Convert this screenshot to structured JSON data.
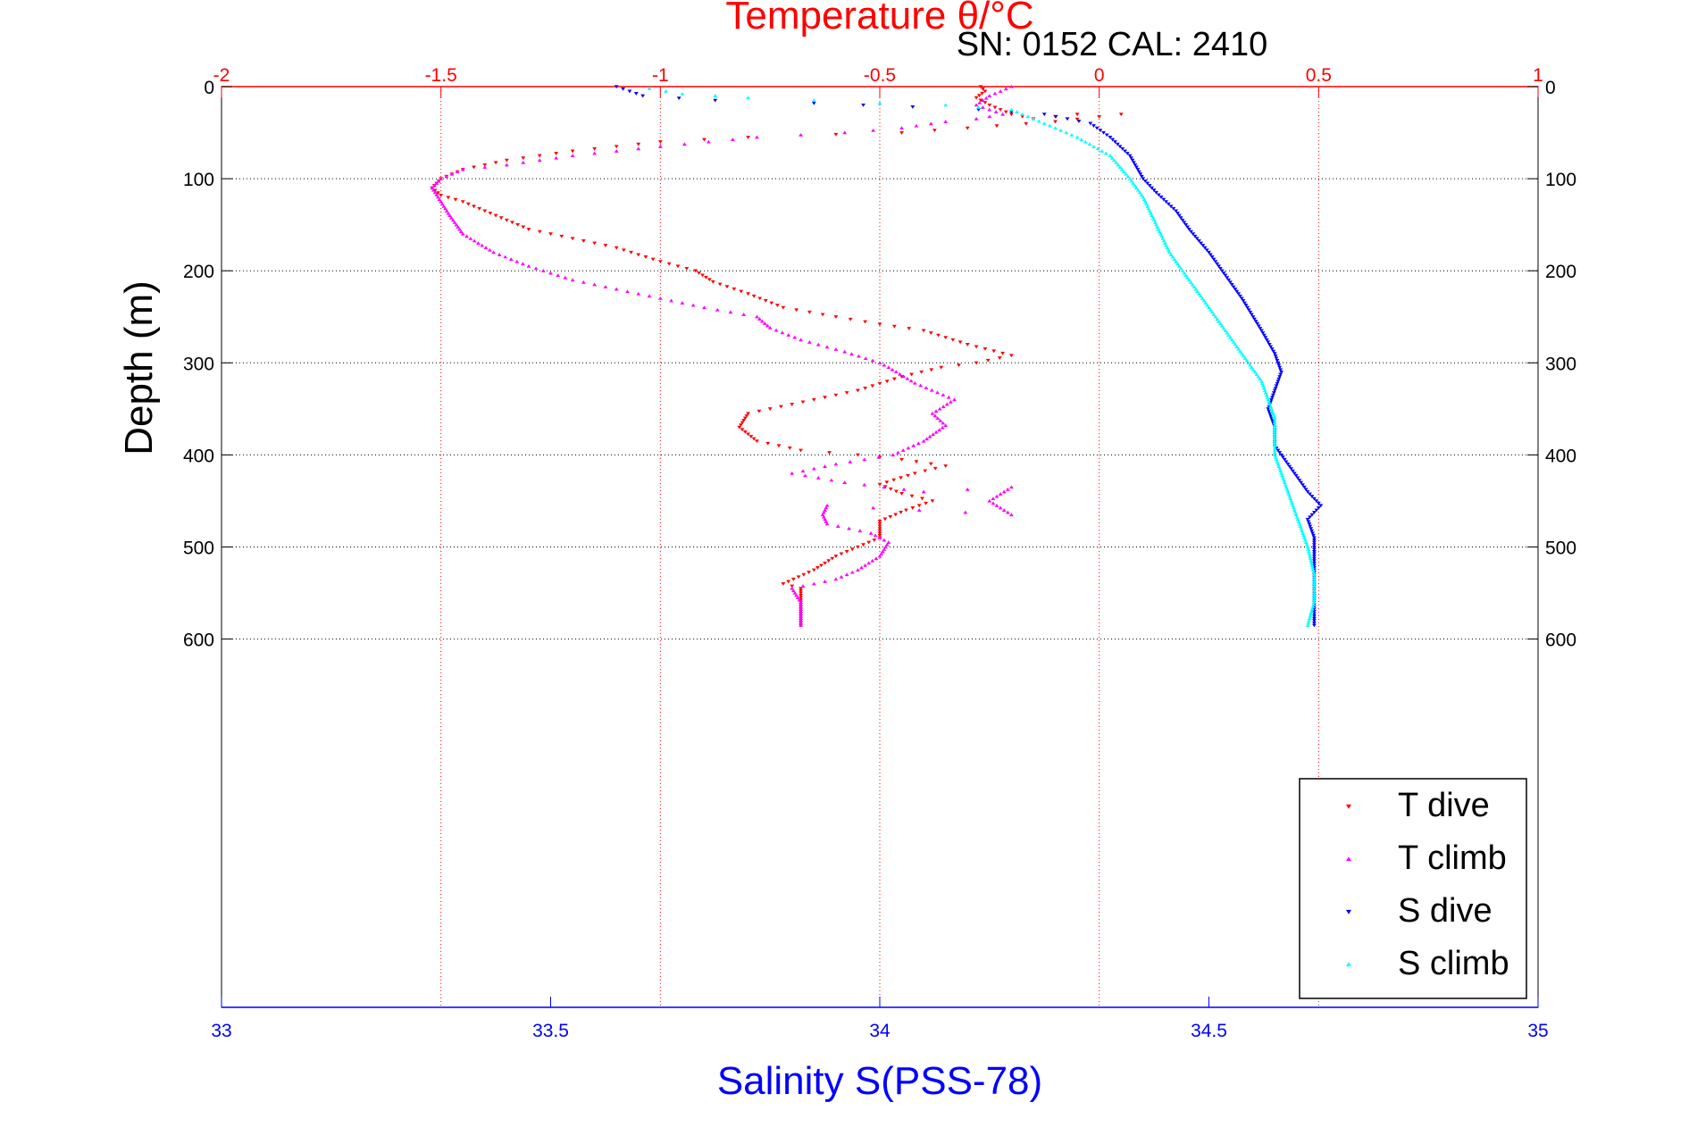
{
  "chart_data": {
    "type": "scatter",
    "title": "Temperature θ/°C",
    "subtitle": "SN: 0152  CAL: 2410",
    "xlabel": "Salinity S(PSS-78)",
    "ylabel": "Depth (m)",
    "x_top": {
      "label": "Temperature θ/°C",
      "range": [
        -2,
        1
      ],
      "ticks": [
        -2,
        -1.5,
        -1,
        -0.5,
        0,
        0.5,
        1
      ],
      "tick_labels": [
        "-2",
        "-1.5",
        "-1",
        "-0.5",
        "0",
        "0.5",
        "1"
      ]
    },
    "x_bottom": {
      "label": "Salinity S(PSS-78)",
      "range": [
        33,
        35
      ],
      "ticks": [
        33,
        33.5,
        34,
        34.5,
        35
      ],
      "tick_labels": [
        "33",
        "33.5",
        "34",
        "34.5",
        "35"
      ]
    },
    "y": {
      "label": "Depth (m)",
      "range": [
        0,
        1000
      ],
      "inverted": true,
      "ticks": [
        0,
        100,
        200,
        300,
        400,
        500,
        600
      ],
      "tick_labels": [
        "0",
        "100",
        "200",
        "300",
        "400",
        "500",
        "600"
      ]
    },
    "grid": true,
    "legend_position": "bottom-right",
    "series": [
      {
        "name": "T dive",
        "axis": "top",
        "color": "#ff0000",
        "marker": "triangle-down",
        "points": [
          [
            -0.27,
            0
          ],
          [
            -0.26,
            5
          ],
          [
            -0.28,
            12
          ],
          [
            -0.25,
            20
          ],
          [
            -0.2,
            30
          ],
          [
            -0.15,
            35
          ],
          [
            -0.05,
            30
          ],
          [
            0.05,
            30
          ],
          [
            -0.1,
            38
          ],
          [
            -0.3,
            45
          ],
          [
            -0.45,
            50
          ],
          [
            -0.6,
            52
          ],
          [
            -0.8,
            55
          ],
          [
            -1.0,
            60
          ],
          [
            -1.2,
            70
          ],
          [
            -1.35,
            80
          ],
          [
            -1.45,
            90
          ],
          [
            -1.5,
            100
          ],
          [
            -1.52,
            110
          ],
          [
            -1.5,
            118
          ],
          [
            -1.45,
            125
          ],
          [
            -1.4,
            135
          ],
          [
            -1.35,
            145
          ],
          [
            -1.3,
            155
          ],
          [
            -1.2,
            165
          ],
          [
            -1.1,
            175
          ],
          [
            -1.0,
            190
          ],
          [
            -0.92,
            200
          ],
          [
            -0.88,
            212
          ],
          [
            -0.8,
            225
          ],
          [
            -0.72,
            240
          ],
          [
            -0.6,
            250
          ],
          [
            -0.5,
            258
          ],
          [
            -0.4,
            265
          ],
          [
            -0.3,
            280
          ],
          [
            -0.2,
            292
          ],
          [
            -0.28,
            300
          ],
          [
            -0.36,
            305
          ],
          [
            -0.45,
            315
          ],
          [
            -0.55,
            330
          ],
          [
            -0.7,
            345
          ],
          [
            -0.8,
            355
          ],
          [
            -0.82,
            370
          ],
          [
            -0.78,
            385
          ],
          [
            -0.68,
            395
          ],
          [
            -0.55,
            400
          ],
          [
            -0.45,
            405
          ],
          [
            -0.35,
            412
          ],
          [
            -0.42,
            420
          ],
          [
            -0.5,
            432
          ],
          [
            -0.45,
            442
          ],
          [
            -0.38,
            450
          ],
          [
            -0.44,
            460
          ],
          [
            -0.5,
            472
          ],
          [
            -0.5,
            480
          ],
          [
            -0.5,
            490
          ],
          [
            -0.55,
            500
          ],
          [
            -0.6,
            510
          ],
          [
            -0.65,
            525
          ],
          [
            -0.72,
            540
          ],
          [
            -0.68,
            545
          ],
          [
            -0.68,
            555
          ],
          [
            -0.68,
            565
          ],
          [
            -0.68,
            575
          ],
          [
            -0.68,
            585
          ]
        ]
      },
      {
        "name": "T climb",
        "axis": "top",
        "color": "#ff00ff",
        "marker": "triangle-up",
        "points": [
          [
            -0.68,
            585
          ],
          [
            -0.68,
            575
          ],
          [
            -0.68,
            560
          ],
          [
            -0.7,
            545
          ],
          [
            -0.6,
            535
          ],
          [
            -0.55,
            525
          ],
          [
            -0.5,
            510
          ],
          [
            -0.48,
            495
          ],
          [
            -0.52,
            485
          ],
          [
            -0.62,
            475
          ],
          [
            -0.63,
            465
          ],
          [
            -0.62,
            455
          ],
          [
            -0.2,
            465
          ],
          [
            -0.25,
            450
          ],
          [
            -0.2,
            435
          ],
          [
            -0.4,
            440
          ],
          [
            -0.58,
            430
          ],
          [
            -0.7,
            420
          ],
          [
            -0.6,
            410
          ],
          [
            -0.47,
            400
          ],
          [
            -0.4,
            385
          ],
          [
            -0.35,
            368
          ],
          [
            -0.38,
            355
          ],
          [
            -0.33,
            340
          ],
          [
            -0.42,
            322
          ],
          [
            -0.48,
            305
          ],
          [
            -0.5,
            300
          ],
          [
            -0.58,
            288
          ],
          [
            -0.68,
            275
          ],
          [
            -0.75,
            262
          ],
          [
            -0.78,
            250
          ],
          [
            -0.9,
            240
          ],
          [
            -1.05,
            225
          ],
          [
            -1.2,
            210
          ],
          [
            -1.3,
            195
          ],
          [
            -1.38,
            180
          ],
          [
            -1.45,
            160
          ],
          [
            -1.48,
            140
          ],
          [
            -1.5,
            125
          ],
          [
            -1.52,
            110
          ],
          [
            -1.5,
            100
          ],
          [
            -1.45,
            90
          ],
          [
            -1.35,
            85
          ],
          [
            -1.2,
            75
          ],
          [
            -1.0,
            65
          ],
          [
            -0.78,
            55
          ],
          [
            -0.58,
            50
          ],
          [
            -0.45,
            45
          ],
          [
            -0.35,
            38
          ],
          [
            -0.28,
            35
          ],
          [
            -0.22,
            30
          ],
          [
            -0.28,
            20
          ],
          [
            -0.25,
            10
          ],
          [
            -0.2,
            0
          ]
        ]
      },
      {
        "name": "S dive",
        "axis": "bottom",
        "color": "#0000ff",
        "marker": "triangle-down",
        "points": [
          [
            33.6,
            0
          ],
          [
            33.62,
            5
          ],
          [
            33.64,
            10
          ],
          [
            33.75,
            15
          ],
          [
            33.9,
            18
          ],
          [
            34.05,
            22
          ],
          [
            34.15,
            25
          ],
          [
            34.25,
            30
          ],
          [
            34.32,
            40
          ],
          [
            34.35,
            55
          ],
          [
            34.38,
            75
          ],
          [
            34.4,
            100
          ],
          [
            34.42,
            115
          ],
          [
            34.45,
            135
          ],
          [
            34.47,
            155
          ],
          [
            34.5,
            180
          ],
          [
            34.52,
            200
          ],
          [
            34.55,
            230
          ],
          [
            34.58,
            265
          ],
          [
            34.6,
            290
          ],
          [
            34.61,
            310
          ],
          [
            34.6,
            330
          ],
          [
            34.59,
            350
          ],
          [
            34.6,
            370
          ],
          [
            34.6,
            390
          ],
          [
            34.61,
            400
          ],
          [
            34.63,
            420
          ],
          [
            34.65,
            440
          ],
          [
            34.67,
            455
          ],
          [
            34.65,
            470
          ],
          [
            34.66,
            490
          ],
          [
            34.66,
            520
          ],
          [
            34.66,
            550
          ],
          [
            34.66,
            585
          ]
        ]
      },
      {
        "name": "S climb",
        "axis": "bottom",
        "color": "#00ffff",
        "marker": "triangle-up",
        "points": [
          [
            34.65,
            585
          ],
          [
            34.66,
            560
          ],
          [
            34.66,
            530
          ],
          [
            34.65,
            500
          ],
          [
            34.64,
            480
          ],
          [
            34.63,
            460
          ],
          [
            34.62,
            440
          ],
          [
            34.61,
            420
          ],
          [
            34.6,
            400
          ],
          [
            34.6,
            380
          ],
          [
            34.6,
            360
          ],
          [
            34.59,
            340
          ],
          [
            34.58,
            320
          ],
          [
            34.56,
            300
          ],
          [
            34.54,
            280
          ],
          [
            34.52,
            260
          ],
          [
            34.5,
            240
          ],
          [
            34.48,
            220
          ],
          [
            34.46,
            200
          ],
          [
            34.44,
            180
          ],
          [
            34.42,
            150
          ],
          [
            34.4,
            120
          ],
          [
            34.38,
            100
          ],
          [
            34.35,
            75
          ],
          [
            34.3,
            55
          ],
          [
            34.25,
            40
          ],
          [
            34.2,
            25
          ],
          [
            34.1,
            20
          ],
          [
            34.0,
            18
          ],
          [
            33.9,
            15
          ],
          [
            33.8,
            12
          ],
          [
            33.7,
            8
          ],
          [
            33.65,
            2
          ]
        ]
      }
    ]
  }
}
